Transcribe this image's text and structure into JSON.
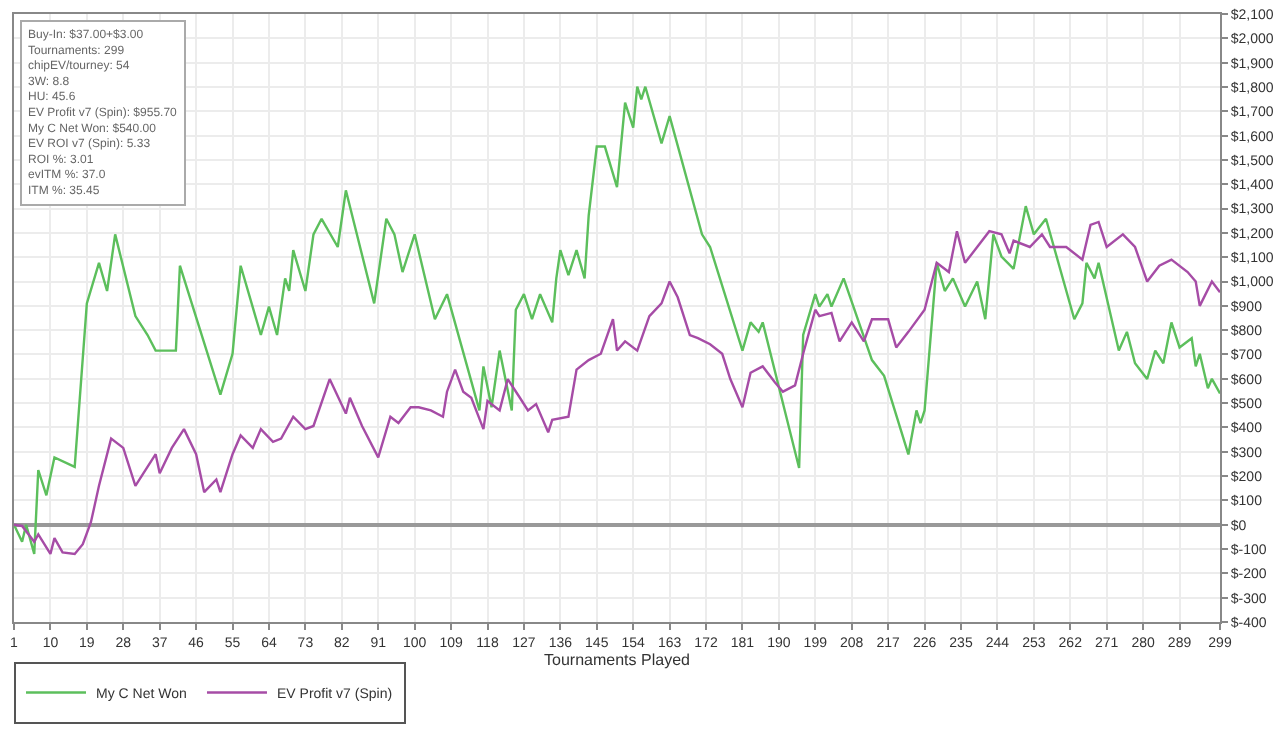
{
  "chart_data": {
    "type": "line",
    "xlabel": "Tournaments Played",
    "annotations": [
      "Buy-In: $37.00+$3.00",
      "Tournaments: 299",
      "chipEV/tourney: 54",
      "3W: 8.8",
      "HU: 45.6",
      "EV Profit v7 (Spin): $955.70",
      "My C Net Won: $540.00",
      "EV ROI v7 (Spin): 5.33",
      "ROI %: 3.01",
      "evITM %: 37.0",
      "ITM %: 35.45"
    ],
    "xlim": [
      1,
      299
    ],
    "xticks": [
      1,
      10,
      19,
      28,
      37,
      46,
      55,
      64,
      73,
      82,
      91,
      100,
      109,
      118,
      127,
      136,
      145,
      154,
      163,
      172,
      181,
      190,
      199,
      208,
      217,
      226,
      235,
      244,
      253,
      262,
      271,
      280,
      289,
      299
    ],
    "ylim": [
      -400,
      2100
    ],
    "yticks": [
      {
        "value": -400,
        "label": "$-400"
      },
      {
        "value": -300,
        "label": "$-300"
      },
      {
        "value": -200,
        "label": "$-200"
      },
      {
        "value": -100,
        "label": "$-100"
      },
      {
        "value": 0,
        "label": "$0"
      },
      {
        "value": 100,
        "label": "$100"
      },
      {
        "value": 200,
        "label": "$200"
      },
      {
        "value": 300,
        "label": "$300"
      },
      {
        "value": 400,
        "label": "$400"
      },
      {
        "value": 500,
        "label": "$500"
      },
      {
        "value": 600,
        "label": "$600"
      },
      {
        "value": 700,
        "label": "$700"
      },
      {
        "value": 800,
        "label": "$800"
      },
      {
        "value": 900,
        "label": "$900"
      },
      {
        "value": 1000,
        "label": "$1,000"
      },
      {
        "value": 1100,
        "label": "$1,100"
      },
      {
        "value": 1200,
        "label": "$1,200"
      },
      {
        "value": 1300,
        "label": "$1,300"
      },
      {
        "value": 1400,
        "label": "$1,400"
      },
      {
        "value": 1500,
        "label": "$1,500"
      },
      {
        "value": 1600,
        "label": "$1,600"
      },
      {
        "value": 1700,
        "label": "$1,700"
      },
      {
        "value": 1800,
        "label": "$1,800"
      },
      {
        "value": 1900,
        "label": "$1,900"
      },
      {
        "value": 2000,
        "label": "$2,000"
      },
      {
        "value": 2100,
        "label": "$2,100"
      }
    ],
    "grid": true,
    "legend": "bottom left",
    "marker": "none",
    "line_style": "solid",
    "series": [
      {
        "name": "My C Net Won",
        "color": "#5cbf5c",
        "x": [
          1,
          3,
          4,
          6,
          7,
          9,
          11,
          16,
          19,
          22,
          24,
          26,
          31,
          34,
          36,
          41,
          42,
          52,
          55,
          57,
          62,
          64,
          66,
          68,
          69,
          70,
          73,
          75,
          77,
          81,
          83,
          90,
          93,
          95,
          97,
          100,
          105,
          108,
          116,
          117,
          119,
          121,
          124,
          125,
          127,
          129,
          131,
          134,
          135,
          136,
          138,
          140,
          142,
          143,
          145,
          147,
          150,
          152,
          154,
          155,
          156,
          157,
          161,
          163,
          171,
          173,
          181,
          183,
          185,
          186,
          195,
          196,
          199,
          200,
          202,
          203,
          206,
          213,
          216,
          222,
          224,
          225,
          226,
          229,
          231,
          233,
          236,
          239,
          241,
          243,
          245,
          248,
          251,
          253,
          256,
          263,
          265,
          266,
          268,
          269,
          274,
          276,
          278,
          281,
          283,
          285,
          287,
          289,
          292,
          293,
          294,
          296,
          297,
          299
        ],
        "values": [
          0,
          -70,
          0,
          -120,
          225,
          121,
          277,
          238,
          910,
          1077,
          961,
          1194,
          858,
          780,
          716,
          716,
          1065,
          535,
          703,
          1065,
          780,
          897,
          780,
          1013,
          961,
          1129,
          961,
          1194,
          1258,
          1142,
          1375,
          910,
          1258,
          1194,
          1039,
          1194,
          845,
          948,
          470,
          651,
          483,
          716,
          470,
          884,
          948,
          845,
          948,
          832,
          1013,
          1129,
          1026,
          1129,
          1013,
          1271,
          1555,
          1555,
          1388,
          1736,
          1633,
          1801,
          1749,
          1801,
          1568,
          1680,
          1194,
          1142,
          716,
          832,
          793,
          832,
          233,
          780,
          948,
          897,
          948,
          897,
          1013,
          677,
          612,
          289,
          470,
          418,
          470,
          1077,
          961,
          1013,
          897,
          1000,
          845,
          1194,
          1103,
          1052,
          1310,
          1194,
          1258,
          845,
          910,
          1077,
          1013,
          1077,
          716,
          793,
          664,
          599,
          716,
          664,
          832,
          729,
          767,
          651,
          703,
          561,
          600,
          540
        ]
      },
      {
        "name": "EV Profit v7 (Spin)",
        "color": "#a64ca6",
        "x": [
          1,
          3,
          6,
          7,
          10,
          11,
          13,
          16,
          18,
          20,
          22,
          25,
          28,
          31,
          33,
          36,
          37,
          40,
          43,
          46,
          48,
          51,
          52,
          55,
          57,
          60,
          62,
          65,
          67,
          70,
          73,
          75,
          79,
          83,
          84,
          87,
          91,
          94,
          96,
          99,
          101,
          104,
          107,
          108,
          110,
          112,
          114,
          117,
          118,
          121,
          123,
          126,
          128,
          130,
          133,
          134,
          138,
          140,
          143,
          146,
          149,
          150,
          152,
          155,
          158,
          161,
          163,
          165,
          168,
          170,
          173,
          176,
          178,
          181,
          183,
          186,
          189,
          191,
          194,
          196,
          199,
          200,
          203,
          205,
          208,
          211,
          213,
          217,
          219,
          222,
          226,
          229,
          232,
          234,
          236,
          239,
          242,
          245,
          247,
          248,
          252,
          255,
          257,
          261,
          265,
          267,
          269,
          271,
          275,
          278,
          281,
          284,
          287,
          291,
          293,
          294,
          297,
          299
        ],
        "values": [
          0,
          -5,
          -70,
          -40,
          -120,
          -55,
          -114,
          -120,
          -80,
          10,
          160,
          354,
          316,
          160,
          212,
          290,
          212,
          316,
          393,
          290,
          134,
          186,
          134,
          290,
          367,
          316,
          393,
          341,
          354,
          444,
          393,
          406,
          599,
          457,
          522,
          406,
          277,
          444,
          418,
          483,
          483,
          470,
          444,
          547,
          638,
          547,
          522,
          393,
          509,
          470,
          599,
          522,
          470,
          496,
          380,
          431,
          444,
          638,
          677,
          703,
          845,
          716,
          754,
          716,
          858,
          910,
          1000,
          935,
          780,
          767,
          742,
          703,
          599,
          483,
          625,
          651,
          586,
          547,
          573,
          703,
          884,
          858,
          871,
          754,
          832,
          754,
          845,
          845,
          729,
          793,
          884,
          1077,
          1039,
          1207,
          1077,
          1142,
          1207,
          1194,
          1116,
          1168,
          1142,
          1194,
          1142,
          1142,
          1090,
          1233,
          1245,
          1142,
          1194,
          1142,
          1000,
          1065,
          1090,
          1039,
          1000,
          900,
          1000,
          956
        ]
      }
    ]
  }
}
